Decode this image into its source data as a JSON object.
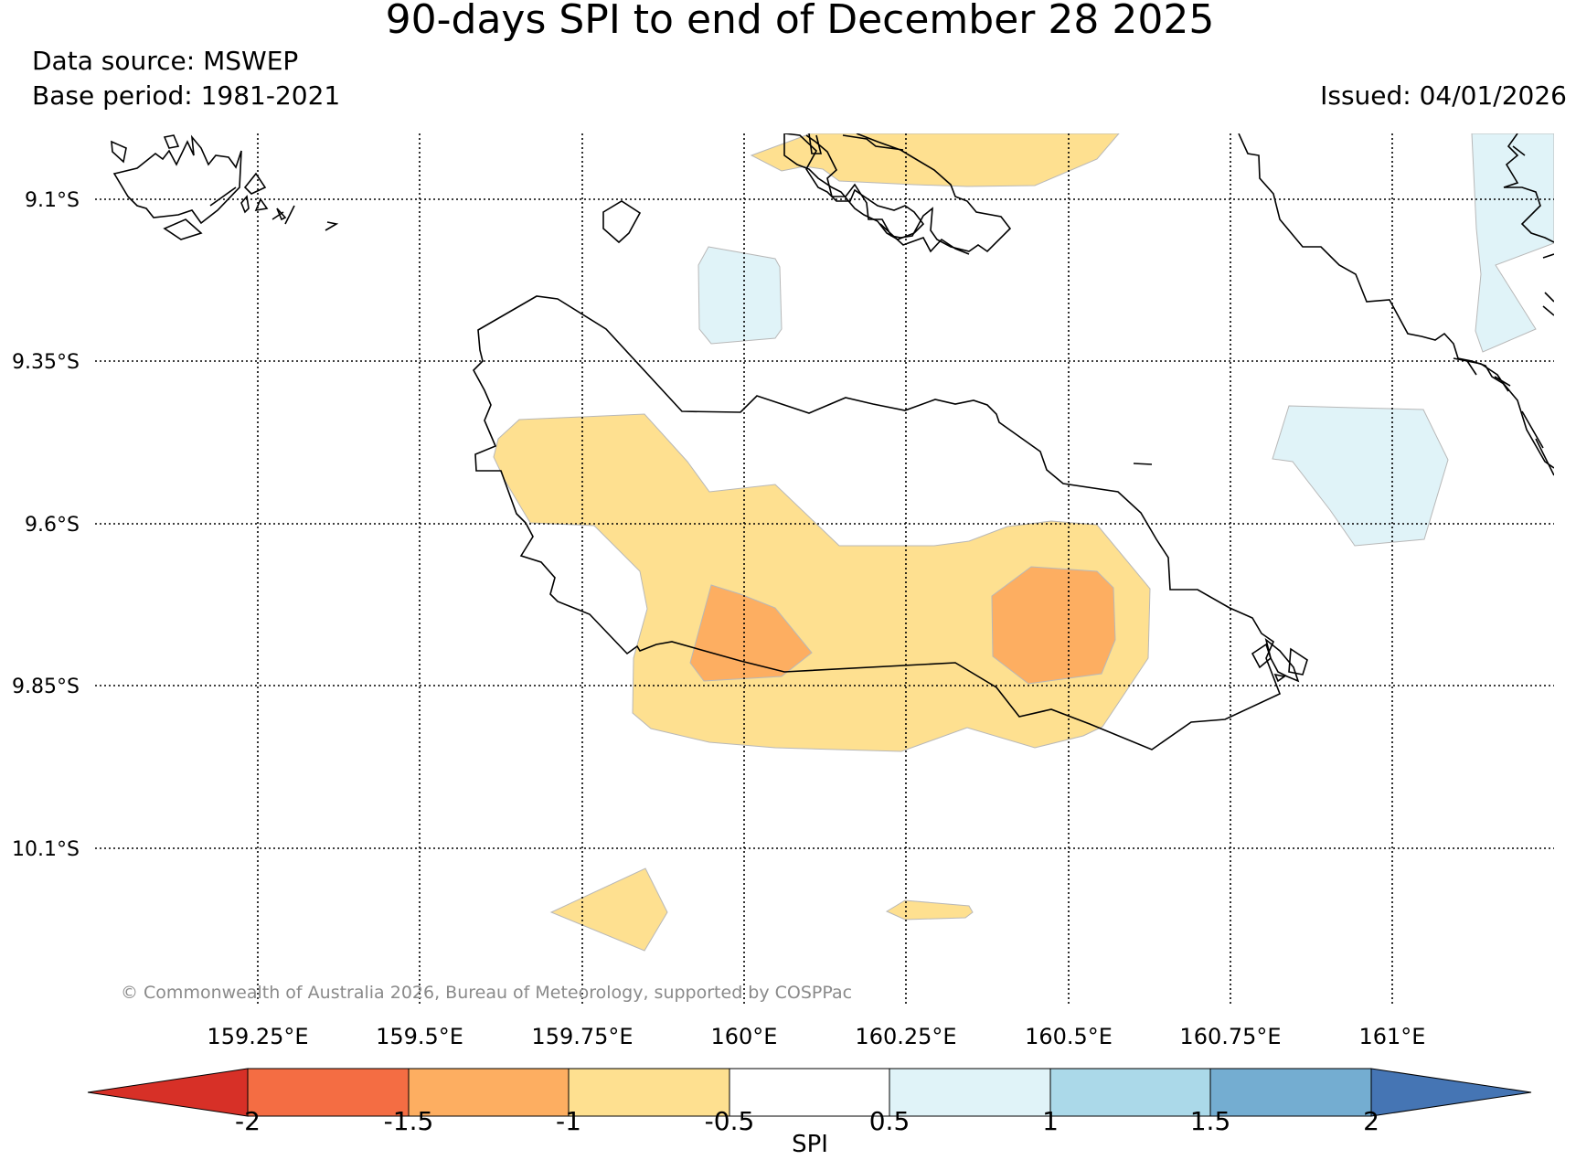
{
  "header": {
    "title": "90-days SPI to end of December 28 2025",
    "data_source": "Data source: MSWEP",
    "base_period": "Base period: 1981-2021",
    "issued": "Issued: 04/01/2026"
  },
  "map": {
    "lat_labels": [
      "9.1°S",
      "9.35°S",
      "9.6°S",
      "9.85°S",
      "10.1°S"
    ],
    "lon_labels": [
      "159.25°E",
      "159.5°E",
      "159.75°E",
      "160°E",
      "160.25°E",
      "160.5°E",
      "160.75°E",
      "161°E"
    ],
    "copyright": "© Commonwealth of Australia 2026, Bureau of Meteorology, supported by COSPPac"
  },
  "colorbar": {
    "label": "SPI",
    "ticks": [
      "-2",
      "-1.5",
      "-1",
      "-0.5",
      "0.5",
      "1",
      "1.5",
      "2"
    ],
    "colors": {
      "below_min": "#d73027",
      "c1": "#f46d43",
      "c2": "#fdae61",
      "c3": "#fee090",
      "c4": "#ffffff",
      "c5": "#e0f3f8",
      "c6": "#abd9e9",
      "c7": "#74add1",
      "above_max": "#4575b4"
    }
  }
}
